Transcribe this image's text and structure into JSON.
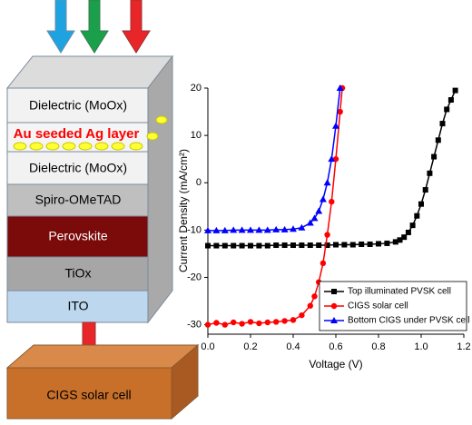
{
  "diagram": {
    "layers": [
      "Dielectric (MoOx)",
      "Au seeded Ag layer",
      "Dielectric (MoOx)",
      "Spiro-OMeTAD",
      "Perovskite",
      "TiOx",
      "ITO"
    ],
    "substrate": "CIGS solar cell"
  },
  "chart_data": {
    "type": "line",
    "xlabel": "Voltage (V)",
    "ylabel": "Current Density (mA/cm²)",
    "xlim": [
      0,
      1.2
    ],
    "ylim": [
      -32,
      20
    ],
    "xticks": [
      {
        "value": 0,
        "label": "0.0"
      },
      0.2,
      0.4,
      0.6,
      0.8,
      {
        "value": 1,
        "label": "1.0"
      },
      1.2
    ],
    "yticks": [
      -30,
      -20,
      -10,
      0,
      10,
      20
    ],
    "legend": "lower right",
    "series": [
      {
        "name": "Top illuminated PVSK cell",
        "color": "#000000",
        "marker": "square",
        "x": [
          0,
          0.04,
          0.08,
          0.12,
          0.16,
          0.2,
          0.24,
          0.28,
          0.32,
          0.36,
          0.4,
          0.44,
          0.48,
          0.52,
          0.56,
          0.6,
          0.64,
          0.68,
          0.72,
          0.76,
          0.8,
          0.84,
          0.88,
          0.9,
          0.92,
          0.94,
          0.96,
          0.98,
          1.0,
          1.02,
          1.04,
          1.06,
          1.08,
          1.1,
          1.12,
          1.14,
          1.16
        ],
        "values": [
          -13.3,
          -13.3,
          -13.3,
          -13.3,
          -13.3,
          -13.3,
          -13.3,
          -13.3,
          -13.2,
          -13.2,
          -13.2,
          -13.2,
          -13.2,
          -13.2,
          -13.2,
          -13.1,
          -13.1,
          -13.1,
          -13.0,
          -13.0,
          -12.9,
          -12.8,
          -12.5,
          -12.1,
          -11.5,
          -10.5,
          -9,
          -7,
          -4.5,
          -1.5,
          2,
          5.5,
          9,
          12.5,
          15.5,
          17.5,
          19.5
        ]
      },
      {
        "name": "CIGS solar cell",
        "color": "#ff0000",
        "marker": "circle",
        "x": [
          0,
          0.04,
          0.08,
          0.12,
          0.16,
          0.2,
          0.24,
          0.28,
          0.32,
          0.36,
          0.4,
          0.44,
          0.48,
          0.5,
          0.52,
          0.54,
          0.56,
          0.58,
          0.6,
          0.62,
          0.63
        ],
        "values": [
          -30,
          -29.6,
          -30,
          -29.5,
          -29.8,
          -29.4,
          -29.7,
          -29.5,
          -29.4,
          -29.2,
          -29,
          -28,
          -26,
          -24,
          -21,
          -17,
          -11,
          -4,
          5,
          15,
          20
        ]
      },
      {
        "name": "Bottom CIGS under PVSK cell",
        "color": "#0000ff",
        "marker": "triangle",
        "x": [
          0,
          0.04,
          0.08,
          0.12,
          0.16,
          0.2,
          0.24,
          0.28,
          0.32,
          0.36,
          0.4,
          0.44,
          0.48,
          0.5,
          0.52,
          0.54,
          0.56,
          0.58,
          0.6,
          0.62
        ],
        "values": [
          -10.1,
          -10.1,
          -10.1,
          -10,
          -10,
          -10,
          -10,
          -10,
          -9.9,
          -9.9,
          -9.8,
          -9.5,
          -8.5,
          -7.5,
          -6,
          -3.5,
          0,
          5,
          12,
          20
        ]
      }
    ]
  }
}
